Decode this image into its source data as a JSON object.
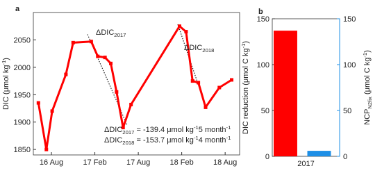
{
  "chart_data": [
    {
      "type": "line",
      "panel_label": "a",
      "ylabel": [
        "DIC (μmol kg",
        "-1",
        ")"
      ],
      "x": [
        -1.8,
        -0.7,
        0.1,
        2,
        3,
        5.5,
        6.4,
        7.4,
        8.2,
        9,
        9.9,
        11,
        17.7,
        18.6,
        19.5,
        20.3,
        21.3,
        23.2,
        24.9
      ],
      "values": [
        1935,
        1850,
        1920,
        1987,
        2045,
        2047,
        2020,
        2018,
        2007,
        1955,
        1890,
        1932,
        2075,
        2065,
        1975,
        1972,
        1927,
        1963,
        1977
      ],
      "color": "#ff0000",
      "xlim": [
        -2.5,
        26
      ],
      "xticks": [
        {
          "value": 0,
          "label": "16 Aug"
        },
        {
          "value": 6,
          "label": "17 Feb"
        },
        {
          "value": 12,
          "label": "17 Aug"
        },
        {
          "value": 18,
          "label": "18 Feb"
        },
        {
          "value": 24,
          "label": "18 Aug"
        }
      ],
      "ylim": [
        1840,
        2100
      ],
      "yticks": [
        1850,
        1900,
        1950,
        2000,
        2050
      ],
      "annotations": [
        [
          "ΔDIC",
          "2017"
        ],
        [
          "ΔDIC",
          "2018"
        ]
      ],
      "notes": [
        [
          "ΔDIC",
          "2017",
          " = -139.4 μmol kg",
          "-1",
          "5 month",
          "-1"
        ],
        [
          "ΔDIC",
          "2018",
          " = -153.7 μmol kg",
          "-1",
          "4 month",
          "-1"
        ]
      ]
    },
    {
      "type": "bar",
      "panel_label": "b",
      "categories": [
        "2017"
      ],
      "series": [
        {
          "color": "#ff0000",
          "values": [
            137
          ]
        },
        {
          "color": "#1e8fe6",
          "axis": "y2",
          "values": [
            6
          ]
        }
      ],
      "ylim": [
        0,
        150
      ],
      "yticks": [
        0,
        50,
        100,
        150
      ],
      "y2lim": [
        0,
        150
      ],
      "y2ticks": [
        0,
        50,
        100,
        150
      ],
      "ylabel": [
        "DIC reduction (μmol C kg",
        "-1",
        ")"
      ],
      "y2label": [
        "NCP",
        "N",
        "2",
        "fix",
        " (μmol C kg",
        "-1",
        ")"
      ]
    }
  ]
}
